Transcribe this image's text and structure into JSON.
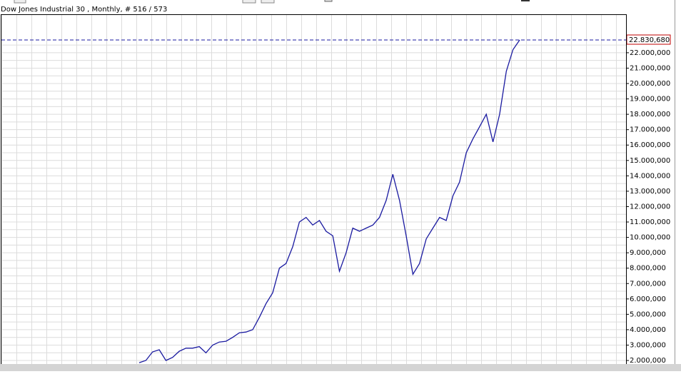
{
  "chart_data": {
    "type": "line",
    "title": "Dow Jones Industrial 30 , Monthly, # 516 / 573",
    "color": "#1a1aa0",
    "values": [
      1860000,
      2000000,
      2560000,
      2700000,
      2000000,
      2200000,
      2600000,
      2800000,
      2800000,
      2900000,
      2500000,
      3000000,
      3200000,
      3250000,
      3500000,
      3800000,
      3850000,
      4000000,
      4800000,
      5700000,
      6400000,
      8000000,
      8300000,
      9400000,
      11000000,
      11300000,
      10800000,
      11100000,
      10400000,
      10100000,
      7800000,
      9000000,
      10600000,
      10400000,
      10600000,
      10800000,
      11300000,
      12400000,
      14100000,
      12400000,
      10100000,
      7600000,
      8300000,
      9900000,
      10600000,
      11300000,
      11100000,
      12700000,
      13600000,
      15500000,
      16400000,
      17200000,
      18000000,
      16200000,
      18000000,
      20800000,
      22200000,
      22830680
    ],
    "last_label": {
      "value": 22830680,
      "label": "22.830,680"
    },
    "ylim": [
      1770000,
      24500000
    ],
    "yticks": [
      {
        "value": 2000000,
        "label": "2.000,000"
      },
      {
        "value": 3000000,
        "label": "3.000,000"
      },
      {
        "value": 4000000,
        "label": "4.000,000"
      },
      {
        "value": 5000000,
        "label": "5.000,000"
      },
      {
        "value": 6000000,
        "label": "6.000,000"
      },
      {
        "value": 7000000,
        "label": "7.000,000"
      },
      {
        "value": 8000000,
        "label": "8.000,000"
      },
      {
        "value": 9000000,
        "label": "9.000,000"
      },
      {
        "value": 10000000,
        "label": "10.000,000"
      },
      {
        "value": 11000000,
        "label": "11.000,000"
      },
      {
        "value": 12000000,
        "label": "12.000,000"
      },
      {
        "value": 13000000,
        "label": "13.000,000"
      },
      {
        "value": 14000000,
        "label": "14.000,000"
      },
      {
        "value": 15000000,
        "label": "15.000,000"
      },
      {
        "value": 16000000,
        "label": "16.000,000"
      },
      {
        "value": 17000000,
        "label": "17.000,000"
      },
      {
        "value": 18000000,
        "label": "18.000,000"
      },
      {
        "value": 19000000,
        "label": "19.000,000"
      },
      {
        "value": 20000000,
        "label": "20.000,000"
      },
      {
        "value": 21000000,
        "label": "21.000,000"
      },
      {
        "value": 22000000,
        "label": "22.000,000"
      }
    ],
    "grid": true
  }
}
